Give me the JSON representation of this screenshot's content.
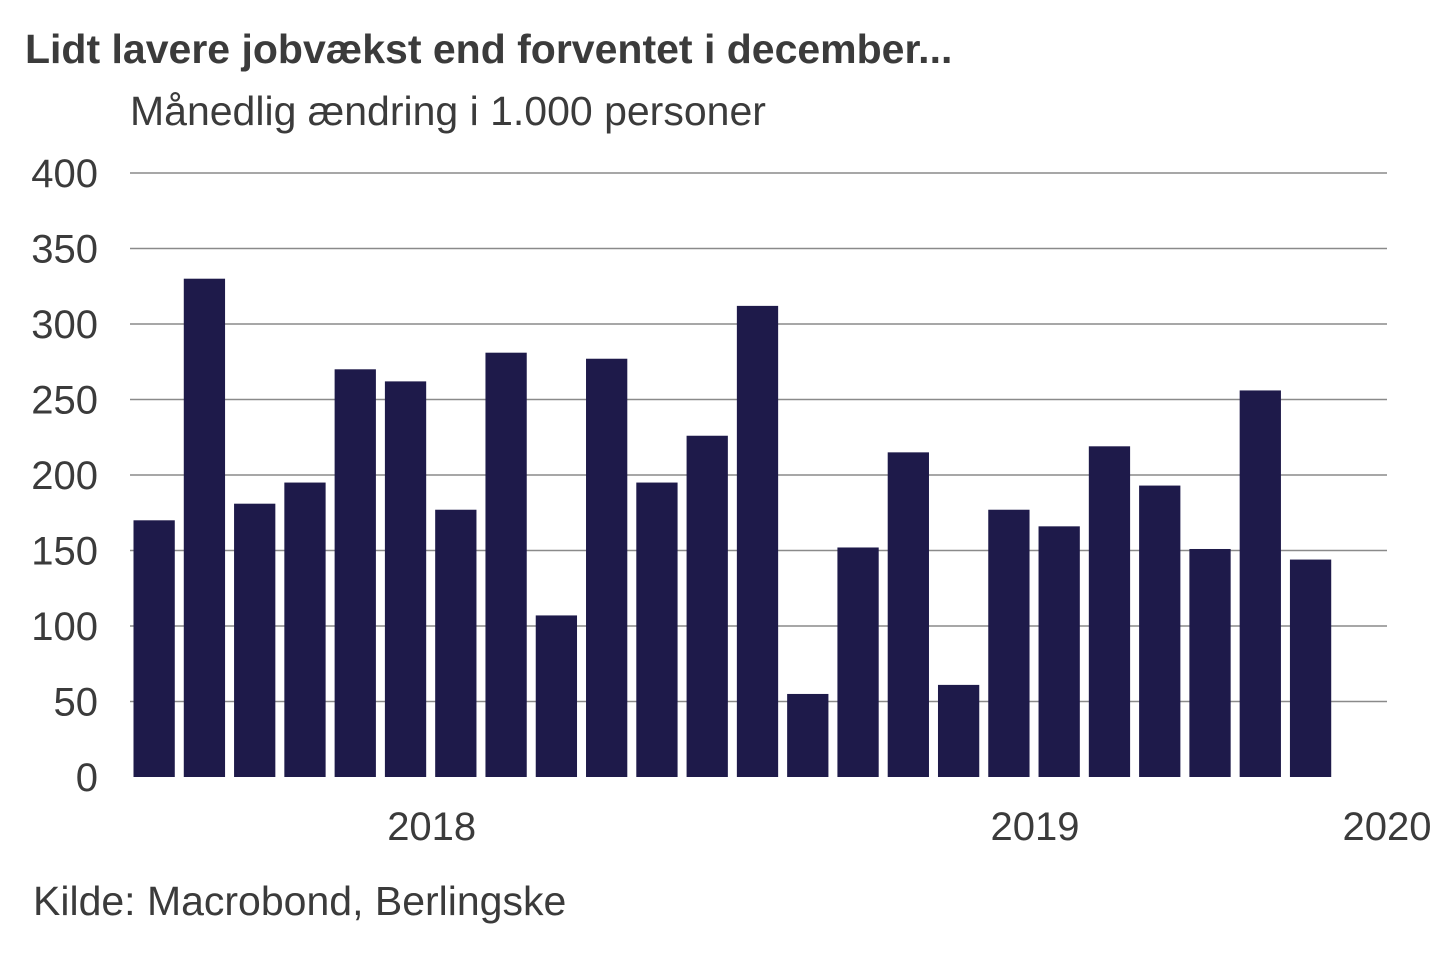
{
  "chart_data": {
    "type": "bar",
    "title": "Lidt lavere jobvækst end forventet i december...",
    "subtitle": "Månedlig ændring i 1.000 personer",
    "source": "Kilde: Macrobond, Berlingske",
    "xlabel": "",
    "ylabel": "",
    "ylim": [
      0,
      400
    ],
    "yticks": [
      "0",
      "50",
      "100",
      "150",
      "200",
      "250",
      "300",
      "350",
      "400"
    ],
    "xtick_labels": [
      {
        "label": "2018",
        "slot": 6
      },
      {
        "label": "2019",
        "slot": 18
      },
      {
        "label": "2020",
        "slot": 25
      }
    ],
    "grid": true,
    "bar_color": "#1e1a4a",
    "values": [
      170,
      330,
      181,
      195,
      270,
      262,
      177,
      281,
      107,
      277,
      195,
      226,
      312,
      55,
      152,
      215,
      61,
      177,
      166,
      219,
      193,
      151,
      256,
      144
    ]
  }
}
